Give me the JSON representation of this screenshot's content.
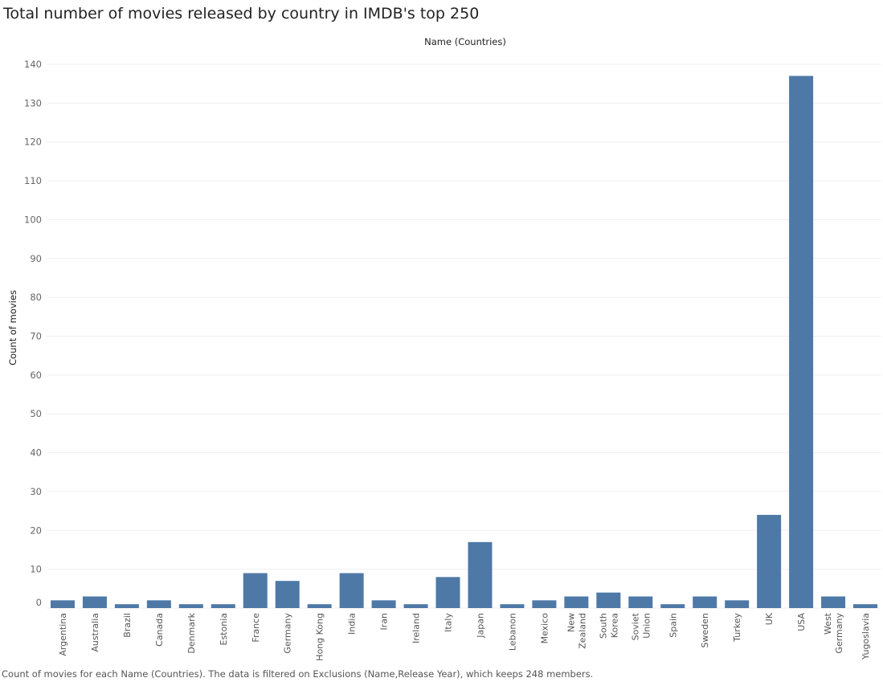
{
  "title": "Total number of movies released by country in IMDB's top 250",
  "footnote": "Count of movies for each Name (Countries). The data is filtered on Exclusions (Name,Release Year), which keeps 248 members.",
  "chart_data": {
    "type": "bar",
    "header": "Name (Countries)",
    "ylabel": "Count of movies",
    "ylim": [
      0,
      140
    ],
    "yticks": [
      0,
      10,
      20,
      30,
      40,
      50,
      60,
      70,
      80,
      90,
      100,
      110,
      120,
      130,
      140
    ],
    "grid": true,
    "bar_color": "#4e79a7",
    "categories": [
      "Argentina",
      "Australia",
      "Brazil",
      "Canada",
      "Denmark",
      "Estonia",
      "France",
      "Germany",
      "Hong Kong",
      "India",
      "Iran",
      "Ireland",
      "Italy",
      "Japan",
      "Lebanon",
      "Mexico",
      "New Zealand",
      "South Korea",
      "Soviet Union",
      "Spain",
      "Sweden",
      "Turkey",
      "UK",
      "USA",
      "West Germany",
      "Yugoslavia"
    ],
    "category_lines": [
      [
        "Argentina"
      ],
      [
        "Australia"
      ],
      [
        "Brazil"
      ],
      [
        "Canada"
      ],
      [
        "Denmark"
      ],
      [
        "Estonia"
      ],
      [
        "France"
      ],
      [
        "Germany"
      ],
      [
        "Hong Kong"
      ],
      [
        "India"
      ],
      [
        "Iran"
      ],
      [
        "Ireland"
      ],
      [
        "Italy"
      ],
      [
        "Japan"
      ],
      [
        "Lebanon"
      ],
      [
        "Mexico"
      ],
      [
        "New",
        "Zealand"
      ],
      [
        "South",
        "Korea"
      ],
      [
        "Soviet",
        "Union"
      ],
      [
        "Spain"
      ],
      [
        "Sweden"
      ],
      [
        "Turkey"
      ],
      [
        "UK"
      ],
      [
        "USA"
      ],
      [
        "West",
        "Germany"
      ],
      [
        "Yugoslavia"
      ]
    ],
    "values": [
      2,
      3,
      1,
      2,
      1,
      1,
      9,
      7,
      1,
      9,
      2,
      1,
      8,
      17,
      1,
      2,
      3,
      4,
      3,
      1,
      3,
      2,
      24,
      137,
      3,
      1
    ]
  }
}
